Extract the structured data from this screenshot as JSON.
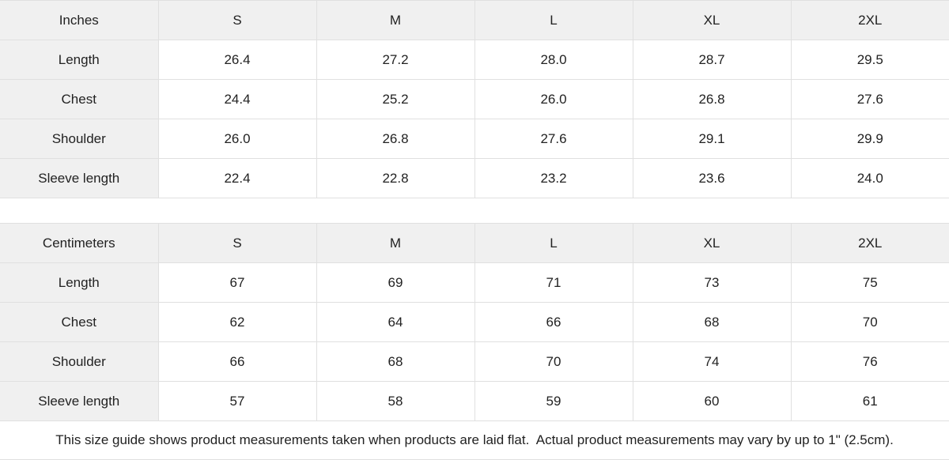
{
  "colors": {
    "header_bg": "#f0f0f0",
    "border": "#e0e0e0",
    "text": "#222222"
  },
  "chart_data": [
    {
      "type": "table",
      "title": "Inches",
      "columns": [
        "Inches",
        "S",
        "M",
        "L",
        "XL",
        "2XL"
      ],
      "rows": [
        [
          "Length",
          "26.4",
          "27.2",
          "28.0",
          "28.7",
          "29.5"
        ],
        [
          "Chest",
          "24.4",
          "25.2",
          "26.0",
          "26.8",
          "27.6"
        ],
        [
          "Shoulder",
          "26.0",
          "26.8",
          "27.6",
          "29.1",
          "29.9"
        ],
        [
          "Sleeve length",
          "22.4",
          "22.8",
          "23.2",
          "23.6",
          "24.0"
        ]
      ]
    },
    {
      "type": "table",
      "title": "Centimeters",
      "columns": [
        "Centimeters",
        "S",
        "M",
        "L",
        "XL",
        "2XL"
      ],
      "rows": [
        [
          "Length",
          "67",
          "69",
          "71",
          "73",
          "75"
        ],
        [
          "Chest",
          "62",
          "64",
          "66",
          "68",
          "70"
        ],
        [
          "Shoulder",
          "66",
          "68",
          "70",
          "74",
          "76"
        ],
        [
          "Sleeve length",
          "57",
          "58",
          "59",
          "60",
          "61"
        ]
      ]
    }
  ],
  "footer": {
    "note": "This size guide shows product measurements taken when products are laid flat.  Actual product measurements may vary by up to 1\" (2.5cm)."
  }
}
